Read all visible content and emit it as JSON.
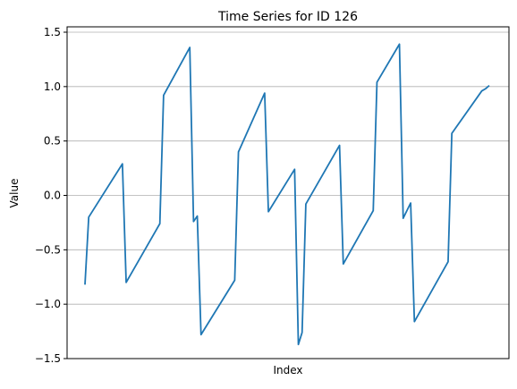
{
  "chart_data": {
    "type": "line",
    "title": "Time Series for ID 126",
    "xlabel": "Index",
    "ylabel": "Value",
    "ylim": [
      -1.5,
      1.55
    ],
    "yticks": [
      -1.5,
      -1.0,
      -0.5,
      0.0,
      0.5,
      1.0,
      1.5
    ],
    "ytick_labels": [
      "−1.5",
      "−1.0",
      "−0.5",
      "0.0",
      "0.5",
      "1.0",
      "1.5"
    ],
    "grid": "horizontal",
    "series": [
      {
        "color": "#1f77b4",
        "x": [
          0,
          1,
          10,
          11,
          20,
          21,
          28,
          29,
          30,
          31,
          40,
          41,
          48,
          49,
          56,
          57,
          58,
          59,
          68,
          69,
          77,
          78,
          84,
          85,
          86,
          87,
          88,
          97,
          98,
          106,
          107,
          108
        ],
        "y": [
          -0.82,
          -0.2,
          0.29,
          -0.8,
          -0.26,
          0.92,
          1.36,
          -0.24,
          -0.19,
          -1.28,
          -0.78,
          0.4,
          0.94,
          -0.15,
          0.24,
          -1.37,
          -1.26,
          -0.08,
          0.46,
          -0.63,
          -0.14,
          1.04,
          1.39,
          -0.21,
          -0.14,
          -0.07,
          -1.16,
          -0.61,
          0.57,
          0.96,
          0.98,
          1.01
        ]
      }
    ]
  }
}
